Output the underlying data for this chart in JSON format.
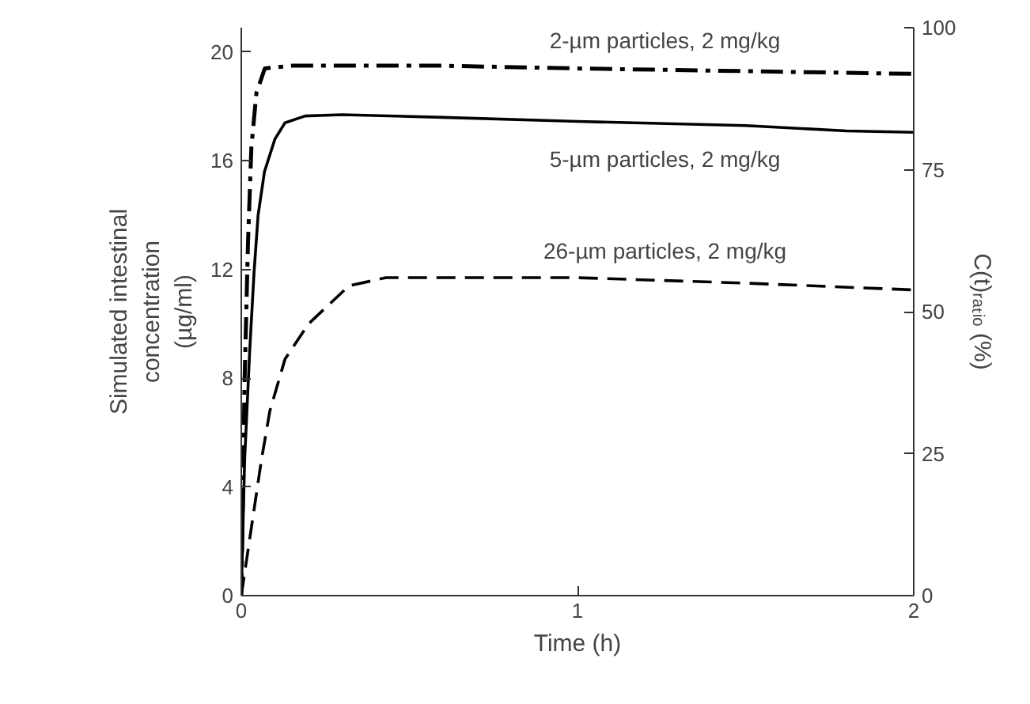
{
  "chart_data": {
    "type": "line",
    "xlabel": "Time (h)",
    "ylabel": "Simulated intestinal\nconcentration\n(µg/ml)",
    "y2label": "C(t)ᵣₐₜᵢₒ (%)",
    "xlim": [
      0,
      2
    ],
    "xticks": [
      0,
      1,
      2
    ],
    "ylim": [
      0,
      20.9
    ],
    "yticks": [
      0,
      4,
      8,
      12,
      16,
      20
    ],
    "y2lim": [
      0,
      100
    ],
    "y2ticks": [
      0,
      25,
      50,
      75,
      100
    ],
    "grid": false,
    "series": [
      {
        "name": "2-µm particles, 2 mg/kg",
        "color": "#000000",
        "line_style": "dashdot",
        "x": [
          0,
          0.01,
          0.02,
          0.03,
          0.045,
          0.07,
          0.15,
          0.6,
          1,
          1.5,
          2
        ],
        "values": [
          0,
          8,
          13,
          16.5,
          18.5,
          19.4,
          19.5,
          19.5,
          19.4,
          19.3,
          19.2
        ]
      },
      {
        "name": "5-µm particles, 2 mg/kg",
        "color": "#000000",
        "line_style": "solid",
        "x": [
          0,
          0.01,
          0.025,
          0.038,
          0.05,
          0.069,
          0.1,
          0.13,
          0.19,
          0.3,
          0.6,
          1,
          1.5,
          1.8,
          2
        ],
        "values": [
          0,
          5,
          9,
          11.9,
          14,
          15.6,
          16.8,
          17.4,
          17.65,
          17.7,
          17.6,
          17.45,
          17.3,
          17.1,
          17.05
        ]
      },
      {
        "name": "26-µm particles, 2 mg/kg",
        "color": "#000000",
        "line_style": "dashed",
        "x": [
          0,
          0.03,
          0.06,
          0.085,
          0.13,
          0.2,
          0.26,
          0.32,
          0.43,
          0.7,
          1,
          1.5,
          2
        ],
        "values": [
          0,
          2.5,
          5,
          6.8,
          8.7,
          10,
          10.7,
          11.4,
          11.7,
          11.7,
          11.7,
          11.5,
          11.25
        ]
      }
    ]
  }
}
